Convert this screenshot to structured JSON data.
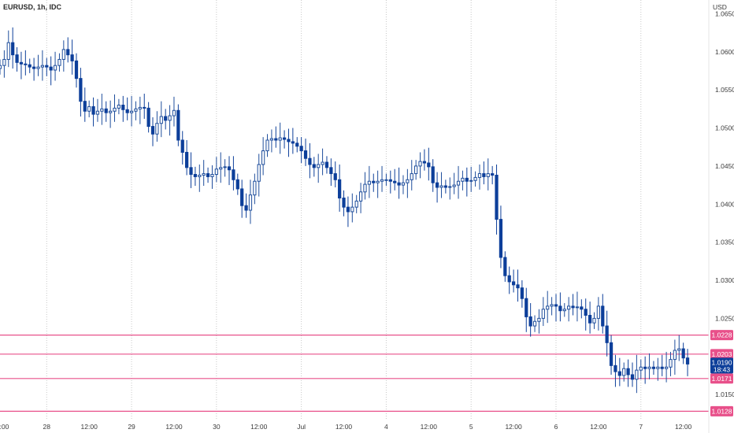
{
  "chart_data": {
    "type": "candlestick",
    "title": "EURUSD, 1h, IDC",
    "currency": "USD",
    "grid": true,
    "ylim": [
      1.0116,
      1.0668
    ],
    "y_ticks": [
      "1.0650",
      "1.0600",
      "1.0550",
      "1.0500",
      "1.0450",
      "1.0400",
      "1.0350",
      "1.0300",
      "1.0250",
      "1.0150"
    ],
    "x_ticks": [
      {
        "label": ":00",
        "pos": 2
      },
      {
        "label": "28",
        "pos": 12
      },
      {
        "label": "12:00",
        "pos": 22
      },
      {
        "label": "29",
        "pos": 32
      },
      {
        "label": "12:00",
        "pos": 42
      },
      {
        "label": "30",
        "pos": 52
      },
      {
        "label": "12:00",
        "pos": 62
      },
      {
        "label": "Jul",
        "pos": 72
      },
      {
        "label": "12:00",
        "pos": 82
      },
      {
        "label": "4",
        "pos": 92
      },
      {
        "label": "12:00",
        "pos": 102
      },
      {
        "label": "5",
        "pos": 112
      },
      {
        "label": "12:00",
        "pos": 122
      },
      {
        "label": "6",
        "pos": 132
      },
      {
        "label": "12:00",
        "pos": 142
      },
      {
        "label": "7",
        "pos": 152
      },
      {
        "label": "12:00",
        "pos": 162
      }
    ],
    "x_range": [
      1,
      168
    ],
    "levels": [
      {
        "label": "1.0228",
        "value": 1.0228
      },
      {
        "label": "1.0203",
        "value": 1.0203
      },
      {
        "label": "1.0171",
        "value": 1.0171
      },
      {
        "label": "1.0128",
        "value": 1.0128
      }
    ],
    "current_price": {
      "label": "1.0190",
      "value": 1.019,
      "countdown": "18:43"
    },
    "colors": {
      "up": "#1f4e9c",
      "down": "#0d3f9a",
      "level": "#e8508a",
      "price_tag": "#0d3f9a",
      "grid": "#c8c8c8",
      "text": "#3a3a3a"
    },
    "close_path": [
      [
        1,
        1.0582
      ],
      [
        2,
        1.059
      ],
      [
        3,
        1.0612
      ],
      [
        4,
        1.0596
      ],
      [
        5,
        1.0586
      ],
      [
        6,
        1.0584
      ],
      [
        7,
        1.0583
      ],
      [
        8,
        1.058
      ],
      [
        9,
        1.0578
      ],
      [
        10,
        1.058
      ],
      [
        11,
        1.0582
      ],
      [
        12,
        1.058
      ],
      [
        13,
        1.0576
      ],
      [
        14,
        1.0582
      ],
      [
        15,
        1.059
      ],
      [
        16,
        1.0603
      ],
      [
        17,
        1.0596
      ],
      [
        18,
        1.0588
      ],
      [
        19,
        1.0565
      ],
      [
        20,
        1.0535
      ],
      [
        21,
        1.0522
      ],
      [
        22,
        1.0528
      ],
      [
        23,
        1.0518
      ],
      [
        24,
        1.0522
      ],
      [
        25,
        1.0525
      ],
      [
        26,
        1.052
      ],
      [
        27,
        1.0522
      ],
      [
        28,
        1.0526
      ],
      [
        29,
        1.053
      ],
      [
        30,
        1.0524
      ],
      [
        31,
        1.052
      ],
      [
        32,
        1.0522
      ],
      [
        33,
        1.0525
      ],
      [
        34,
        1.0527
      ],
      [
        35,
        1.0526
      ],
      [
        36,
        1.0502
      ],
      [
        37,
        1.0492
      ],
      [
        38,
        1.0506
      ],
      [
        39,
        1.0515
      ],
      [
        40,
        1.051
      ],
      [
        41,
        1.0516
      ],
      [
        42,
        1.0523
      ],
      [
        43,
        1.0484
      ],
      [
        44,
        1.0468
      ],
      [
        45,
        1.0448
      ],
      [
        46,
        1.0439
      ],
      [
        47,
        1.0436
      ],
      [
        48,
        1.0438
      ],
      [
        49,
        1.044
      ],
      [
        50,
        1.0436
      ],
      [
        51,
        1.0439
      ],
      [
        52,
        1.0446
      ],
      [
        53,
        1.0448
      ],
      [
        54,
        1.0449
      ],
      [
        55,
        1.0445
      ],
      [
        56,
        1.0432
      ],
      [
        57,
        1.042
      ],
      [
        58,
        1.0398
      ],
      [
        59,
        1.0392
      ],
      [
        60,
        1.0412
      ],
      [
        61,
        1.043
      ],
      [
        62,
        1.0452
      ],
      [
        63,
        1.047
      ],
      [
        64,
        1.0484
      ],
      [
        65,
        1.0486
      ],
      [
        66,
        1.0484
      ],
      [
        67,
        1.0487
      ],
      [
        68,
        1.0485
      ],
      [
        69,
        1.0482
      ],
      [
        70,
        1.048
      ],
      [
        71,
        1.0476
      ],
      [
        72,
        1.047
      ],
      [
        73,
        1.046
      ],
      [
        74,
        1.0452
      ],
      [
        75,
        1.0448
      ],
      [
        76,
        1.0452
      ],
      [
        77,
        1.0455
      ],
      [
        78,
        1.0448
      ],
      [
        79,
        1.044
      ],
      [
        80,
        1.0432
      ],
      [
        81,
        1.0408
      ],
      [
        82,
        1.0396
      ],
      [
        83,
        1.039
      ],
      [
        84,
        1.0396
      ],
      [
        85,
        1.0404
      ],
      [
        86,
        1.0416
      ],
      [
        87,
        1.0426
      ],
      [
        88,
        1.043
      ],
      [
        89,
        1.0428
      ],
      [
        90,
        1.043
      ],
      [
        91,
        1.0432
      ],
      [
        92,
        1.0432
      ],
      [
        93,
        1.043
      ],
      [
        94,
        1.0428
      ],
      [
        95,
        1.0425
      ],
      [
        96,
        1.0428
      ],
      [
        97,
        1.0432
      ],
      [
        98,
        1.044
      ],
      [
        99,
        1.045
      ],
      [
        100,
        1.0456
      ],
      [
        101,
        1.0454
      ],
      [
        102,
        1.0449
      ],
      [
        103,
        1.0428
      ],
      [
        104,
        1.0422
      ],
      [
        105,
        1.0424
      ],
      [
        106,
        1.0422
      ],
      [
        107,
        1.0423
      ],
      [
        108,
        1.0425
      ],
      [
        109,
        1.043
      ],
      [
        110,
        1.0434
      ],
      [
        111,
        1.043
      ],
      [
        112,
        1.0431
      ],
      [
        113,
        1.0435
      ],
      [
        114,
        1.044
      ],
      [
        115,
        1.0436
      ],
      [
        116,
        1.044
      ],
      [
        117,
        1.0438
      ],
      [
        118,
        1.038
      ],
      [
        119,
        1.033
      ],
      [
        120,
        1.0306
      ],
      [
        121,
        1.0298
      ],
      [
        122,
        1.0294
      ],
      [
        123,
        1.029
      ],
      [
        124,
        1.0276
      ],
      [
        125,
        1.0252
      ],
      [
        126,
        1.024
      ],
      [
        127,
        1.0246
      ],
      [
        128,
        1.025
      ],
      [
        129,
        1.0262
      ],
      [
        130,
        1.0266
      ],
      [
        131,
        1.0268
      ],
      [
        132,
        1.0266
      ],
      [
        133,
        1.026
      ],
      [
        134,
        1.0262
      ],
      [
        135,
        1.0266
      ],
      [
        136,
        1.0264
      ],
      [
        137,
        1.0265
      ],
      [
        138,
        1.0262
      ],
      [
        139,
        1.0254
      ],
      [
        140,
        1.0244
      ],
      [
        141,
        1.025
      ],
      [
        142,
        1.0266
      ],
      [
        143,
        1.024
      ],
      [
        144,
        1.0218
      ],
      [
        145,
        1.0188
      ],
      [
        146,
        1.018
      ],
      [
        147,
        1.0175
      ],
      [
        148,
        1.0184
      ],
      [
        149,
        1.0176
      ],
      [
        150,
        1.017
      ],
      [
        151,
        1.0182
      ],
      [
        152,
        1.0186
      ],
      [
        153,
        1.0184
      ],
      [
        154,
        1.0186
      ],
      [
        155,
        1.0184
      ],
      [
        156,
        1.0186
      ],
      [
        157,
        1.0184
      ],
      [
        158,
        1.0186
      ],
      [
        159,
        1.0196
      ],
      [
        160,
        1.0208
      ],
      [
        161,
        1.021
      ],
      [
        162,
        1.0198
      ],
      [
        163,
        1.019
      ]
    ]
  }
}
